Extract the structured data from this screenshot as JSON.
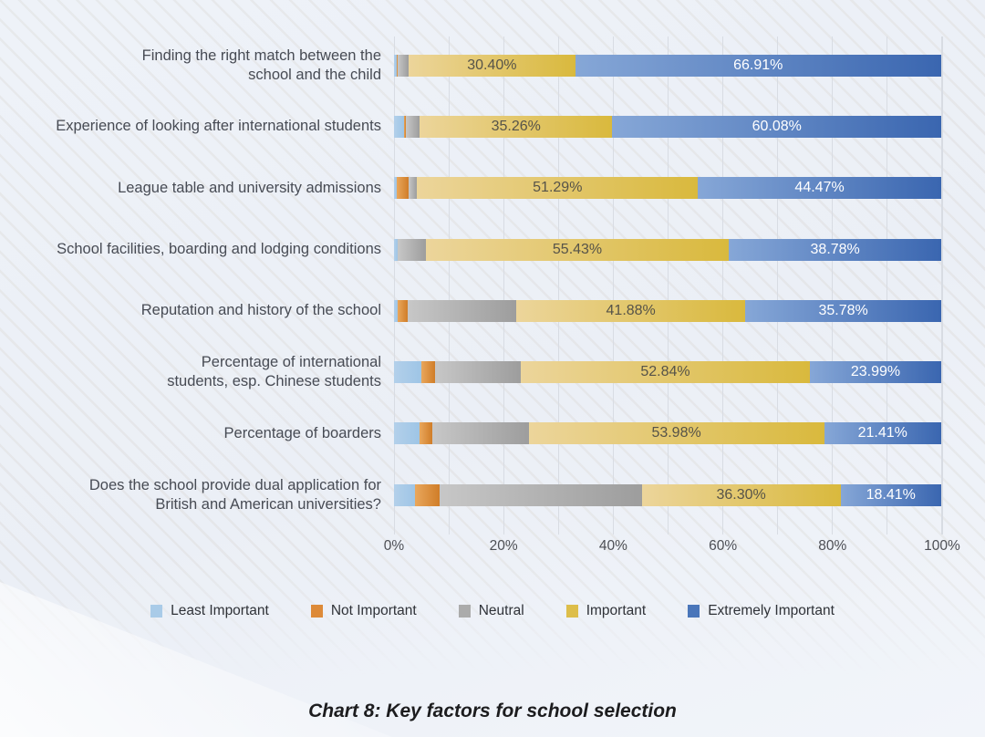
{
  "caption": "Chart 8: Key factors for school selection",
  "chart_data": {
    "type": "bar",
    "orientation": "horizontal",
    "stacked": true,
    "xlim": [
      0,
      100
    ],
    "x_ticks": [
      "0%",
      "20%",
      "40%",
      "60%",
      "80%",
      "100%"
    ],
    "grid": "vertical gridlines every 10%",
    "legend_position": "bottom",
    "series_names": [
      "Least Important",
      "Not Important",
      "Neutral",
      "Important",
      "Extremely Important"
    ],
    "series_colors": [
      "#a9cbe8",
      "#dd8a38",
      "#ababab",
      "#ddbe4a",
      "#4a76ba"
    ],
    "rows": [
      {
        "category": "Finding the right match between the\nschool and the child",
        "values": [
          0.49,
          0.25,
          1.95,
          30.4,
          66.91
        ],
        "labels": [
          "",
          "",
          "",
          "30.40%",
          "66.91%"
        ]
      },
      {
        "category": "Experience of looking after international students",
        "values": [
          1.84,
          0.37,
          2.45,
          35.26,
          60.08
        ],
        "labels": [
          "",
          "",
          "",
          "35.26%",
          "60.08%"
        ]
      },
      {
        "category": "League table and university admissions",
        "values": [
          0.49,
          2.22,
          1.53,
          51.29,
          44.47
        ],
        "labels": [
          "",
          "",
          "",
          "51.29%",
          "44.47%"
        ]
      },
      {
        "category": "School facilities, boarding and lodging conditions",
        "values": [
          0.62,
          0.12,
          5.05,
          55.43,
          38.78
        ],
        "labels": [
          "",
          "",
          "",
          "55.43%",
          "38.78%"
        ]
      },
      {
        "category": "Reputation and history of the school",
        "values": [
          0.67,
          1.84,
          19.83,
          41.88,
          35.78
        ],
        "labels": [
          "",
          "",
          "",
          "41.88%",
          "35.78%"
        ]
      },
      {
        "category": "Percentage of international\nstudents, esp. Chinese students",
        "values": [
          5.04,
          2.46,
          15.67,
          52.84,
          23.99
        ],
        "labels": [
          "",
          "",
          "",
          "52.84%",
          "23.99%"
        ]
      },
      {
        "category": "Percentage of boarders",
        "values": [
          4.67,
          2.34,
          17.6,
          53.98,
          21.41
        ],
        "labels": [
          "",
          "",
          "",
          "53.98%",
          "21.41%"
        ]
      },
      {
        "category": "Does the school provide dual application for\nBritish and American universities?",
        "values": [
          3.81,
          4.55,
          36.93,
          36.3,
          18.41
        ],
        "labels": [
          "",
          "",
          "",
          "36.30%",
          "18.41%"
        ]
      }
    ]
  },
  "legend": {
    "items": [
      {
        "label": "Least Important",
        "color": "#a9cbe8"
      },
      {
        "label": "Not Important",
        "color": "#dd8a38"
      },
      {
        "label": "Neutral",
        "color": "#ababab"
      },
      {
        "label": "Important",
        "color": "#ddbe4a"
      },
      {
        "label": "Extremely Important",
        "color": "#4a76ba"
      }
    ]
  }
}
